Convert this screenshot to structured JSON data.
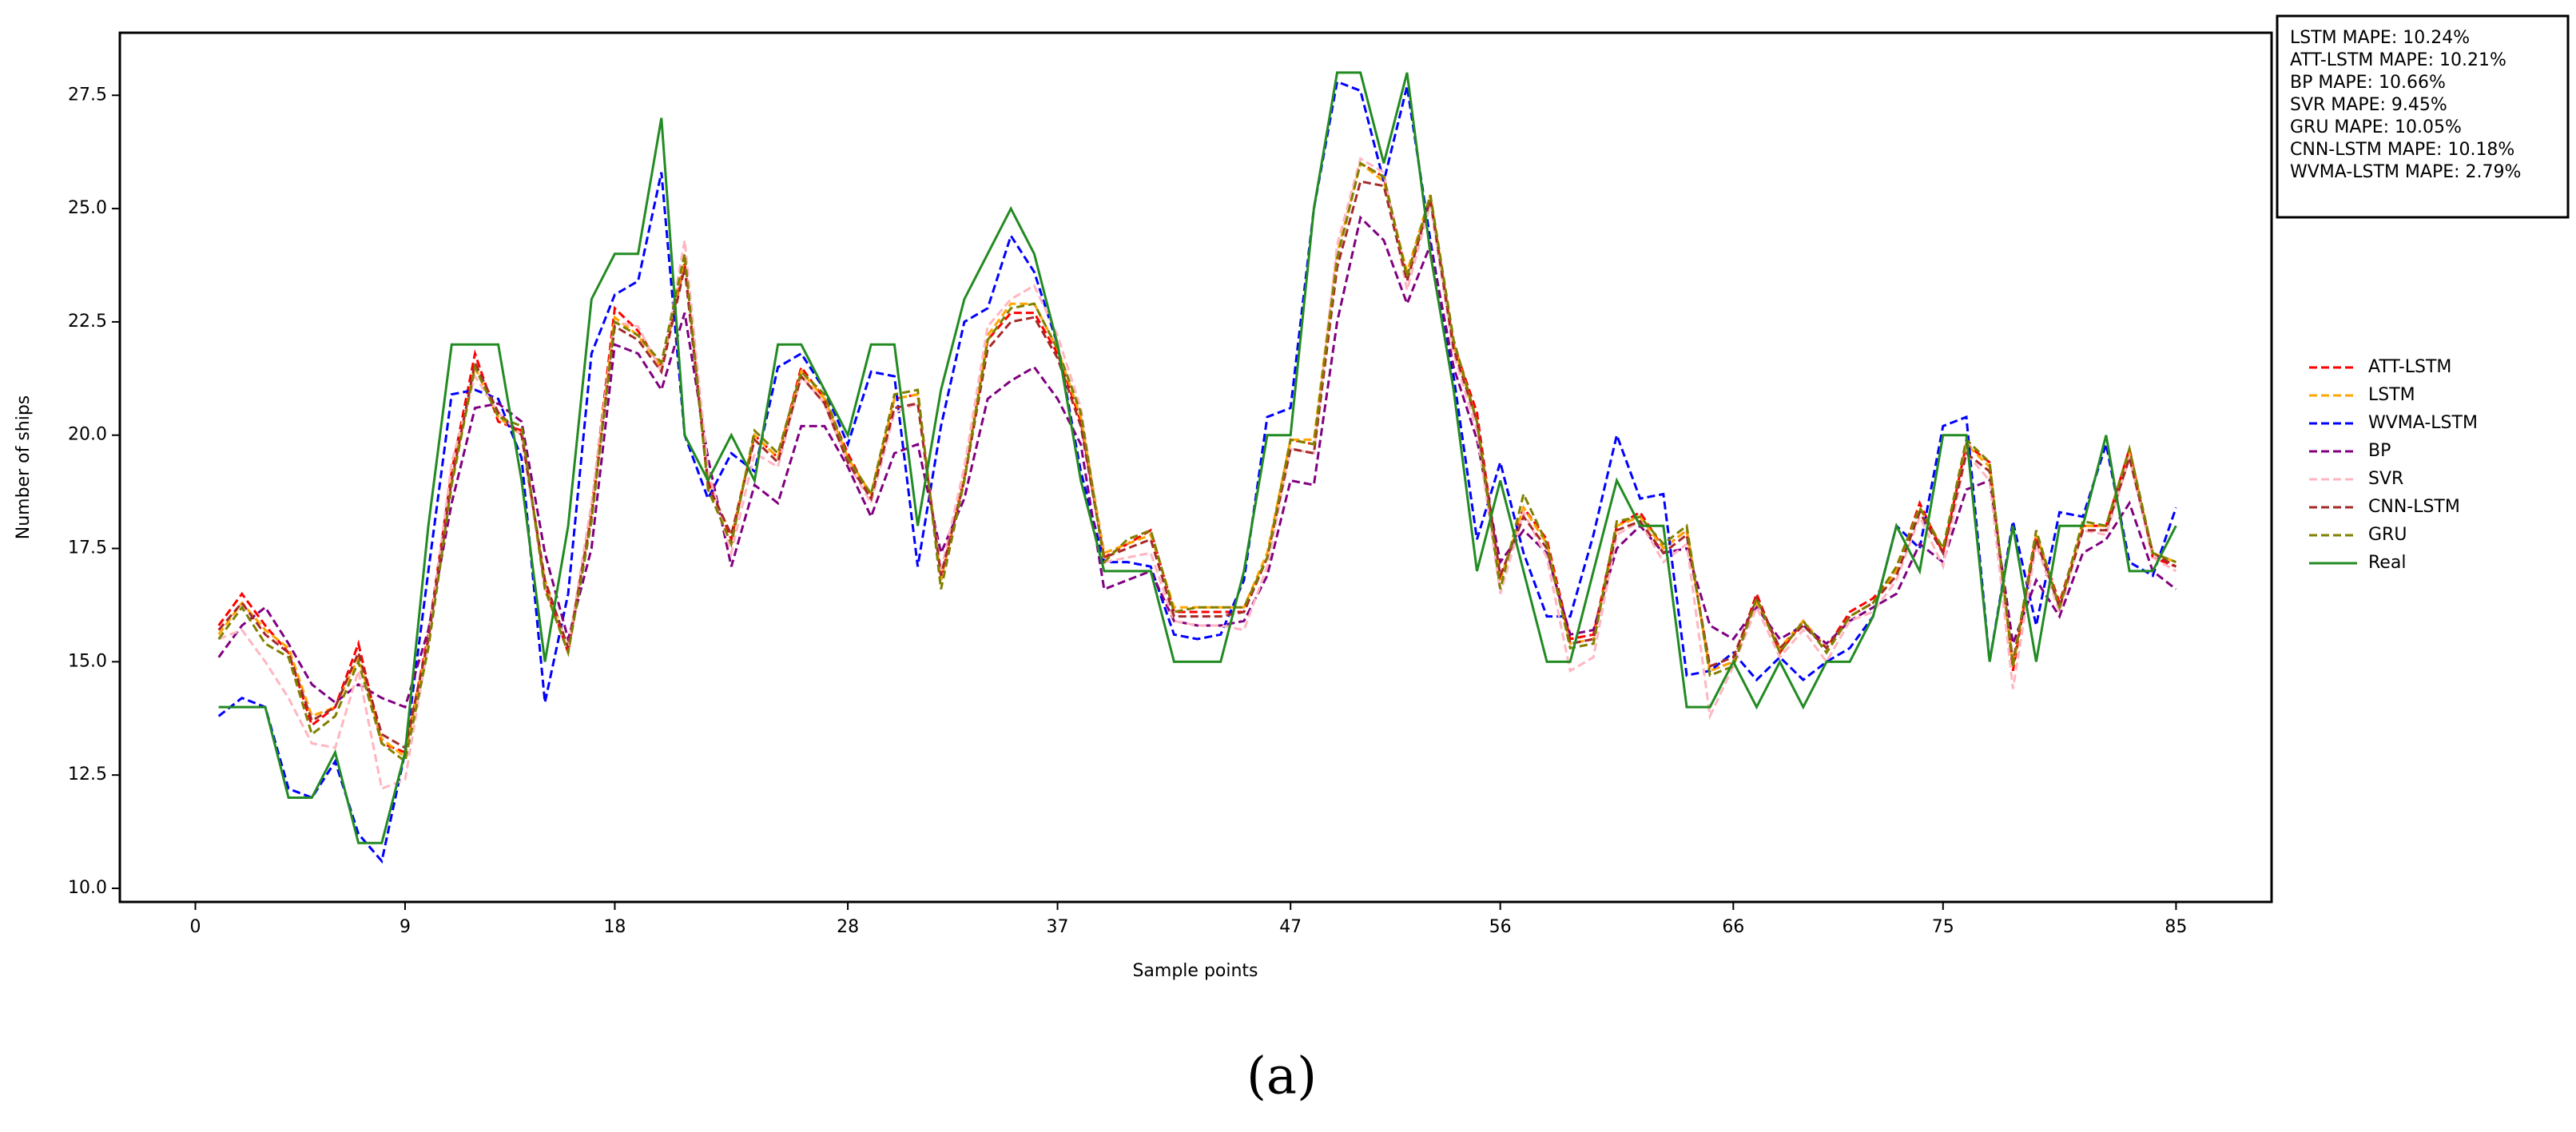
{
  "chart_data": {
    "type": "line",
    "xlabel": "Sample points",
    "ylabel": "Number of ships",
    "caption": "(a)",
    "annotations": [
      "LSTM MAPE: 10.24%",
      "ATT-LSTM MAPE: 10.21%",
      "BP MAPE: 10.66%",
      "SVR MAPE: 9.45%",
      "GRU MAPE: 10.05%",
      "CNN-LSTM MAPE: 10.18%",
      "WVMA-LSTM MAPE: 2.79%"
    ],
    "legend": "right",
    "xlim": [
      -3.24,
      89.1
    ],
    "ylim": [
      9.7,
      28.88
    ],
    "xticks": [
      0,
      9,
      18,
      28,
      37,
      47,
      56,
      66,
      75,
      85
    ],
    "yticks": [
      {
        "value": 10,
        "label": "10.0"
      },
      12.5,
      {
        "value": 15,
        "label": "15.0"
      },
      17.5,
      {
        "value": 20,
        "label": "20.0"
      },
      22.5,
      {
        "value": 25,
        "label": "25.0"
      },
      27.5
    ],
    "x": [
      1,
      2,
      3,
      4,
      5,
      6,
      7,
      8,
      9,
      10,
      11,
      12,
      13,
      14,
      15,
      16,
      17,
      18,
      19,
      20,
      21,
      22,
      23,
      24,
      25,
      26,
      27,
      28,
      29,
      30,
      31,
      32,
      33,
      34,
      35,
      36,
      37,
      38,
      39,
      40,
      41,
      42,
      43,
      44,
      45,
      46,
      47,
      48,
      49,
      50,
      51,
      52,
      53,
      54,
      55,
      56,
      57,
      58,
      59,
      60,
      61,
      62,
      63,
      64,
      65,
      66,
      67,
      68,
      69,
      70,
      71,
      72,
      73,
      74,
      75,
      76,
      77,
      78,
      79,
      80,
      81,
      82,
      83,
      84,
      85
    ],
    "series": [
      {
        "name": "ATT-LSTM",
        "color": "#ff0000",
        "dashed": true,
        "values": [
          15.8,
          16.5,
          15.8,
          15.2,
          13.6,
          14.0,
          15.4,
          13.2,
          13.0,
          15.6,
          19.2,
          21.8,
          20.3,
          20.1,
          16.7,
          15.2,
          18.4,
          22.8,
          22.3,
          21.5,
          23.8,
          19.0,
          17.7,
          20.0,
          19.5,
          21.5,
          20.8,
          19.6,
          18.6,
          20.8,
          20.9,
          16.8,
          19.1,
          22.1,
          22.7,
          22.7,
          21.8,
          20.3,
          17.3,
          17.6,
          17.9,
          16.1,
          16.1,
          16.1,
          16.1,
          17.3,
          19.9,
          19.8,
          24.0,
          26.0,
          25.7,
          23.5,
          25.2,
          22.0,
          20.5,
          16.8,
          18.4,
          17.7,
          15.5,
          15.6,
          18.0,
          18.3,
          17.5,
          17.9,
          14.8,
          15.0,
          16.5,
          15.2,
          15.9,
          15.3,
          16.1,
          16.4,
          17.0,
          18.5,
          17.4,
          19.8,
          19.4,
          14.8,
          17.8,
          16.3,
          18.0,
          18.0,
          19.7,
          17.3,
          17.1
        ]
      },
      {
        "name": "LSTM",
        "color": "#ffa500",
        "dashed": true,
        "values": [
          15.6,
          16.3,
          15.7,
          15.3,
          13.8,
          14.0,
          15.1,
          13.3,
          12.9,
          15.5,
          19.0,
          21.5,
          20.4,
          20.0,
          16.8,
          15.3,
          18.3,
          22.6,
          22.2,
          21.5,
          23.9,
          18.9,
          17.8,
          20.0,
          19.5,
          21.4,
          20.8,
          19.5,
          18.7,
          20.8,
          20.9,
          16.8,
          19.2,
          22.2,
          22.9,
          22.9,
          21.9,
          20.4,
          17.4,
          17.6,
          17.8,
          16.2,
          16.2,
          16.2,
          16.2,
          17.4,
          19.9,
          19.9,
          24.0,
          26.0,
          25.6,
          23.6,
          25.3,
          22.0,
          20.3,
          16.8,
          18.4,
          17.6,
          15.4,
          15.5,
          18.0,
          18.2,
          17.5,
          17.9,
          14.8,
          15.0,
          16.3,
          15.3,
          15.9,
          15.3,
          16.0,
          16.3,
          17.0,
          18.4,
          17.5,
          19.8,
          19.3,
          14.9,
          17.8,
          16.2,
          18.0,
          18.0,
          19.6,
          17.4,
          17.2
        ]
      },
      {
        "name": "WVMA-LSTM",
        "color": "#0000ff",
        "dashed": true,
        "values": [
          13.8,
          14.2,
          14.0,
          12.2,
          12.0,
          12.8,
          11.2,
          10.6,
          13.0,
          17.0,
          20.9,
          21.0,
          20.8,
          19.5,
          14.1,
          16.5,
          21.8,
          23.1,
          23.4,
          25.8,
          20.0,
          18.6,
          19.6,
          19.2,
          21.5,
          21.8,
          21.0,
          19.8,
          21.4,
          21.3,
          17.1,
          20.2,
          22.5,
          22.8,
          24.4,
          23.6,
          22.0,
          19.2,
          17.2,
          17.2,
          17.1,
          15.6,
          15.5,
          15.6,
          16.8,
          20.4,
          20.6,
          25.0,
          27.8,
          27.6,
          25.6,
          27.7,
          24.3,
          21.3,
          17.7,
          19.4,
          17.4,
          16.0,
          16.0,
          17.8,
          20.0,
          18.6,
          18.7,
          14.7,
          14.8,
          15.2,
          14.6,
          15.1,
          14.6,
          15.0,
          15.3,
          16.0,
          18.0,
          17.5,
          20.2,
          20.4,
          15.0,
          18.1,
          15.8,
          18.3,
          18.2,
          19.8,
          17.2,
          16.9,
          18.4
        ]
      },
      {
        "name": "BP",
        "color": "#800080",
        "dashed": true,
        "values": [
          15.1,
          15.8,
          16.2,
          15.4,
          14.5,
          14.1,
          14.5,
          14.2,
          14.0,
          15.7,
          18.5,
          20.6,
          20.7,
          20.3,
          17.4,
          15.5,
          17.5,
          22.0,
          21.8,
          21.0,
          22.7,
          19.5,
          17.1,
          18.9,
          18.5,
          20.2,
          20.2,
          19.3,
          18.2,
          19.6,
          19.8,
          17.4,
          18.6,
          20.8,
          21.2,
          21.5,
          20.8,
          19.8,
          16.6,
          16.8,
          17.0,
          15.9,
          15.8,
          15.8,
          15.9,
          16.9,
          19.0,
          18.9,
          22.5,
          24.8,
          24.3,
          22.9,
          24.2,
          21.5,
          19.9,
          17.2,
          17.9,
          17.4,
          15.6,
          15.7,
          17.5,
          18.0,
          17.4,
          17.5,
          15.8,
          15.5,
          16.2,
          15.5,
          15.8,
          15.4,
          15.9,
          16.2,
          16.5,
          17.6,
          17.2,
          18.8,
          19.0,
          15.4,
          16.8,
          16.0,
          17.4,
          17.7,
          18.5,
          17.0,
          16.6
        ]
      },
      {
        "name": "SVR",
        "color": "#ffb6c1",
        "dashed": true,
        "values": [
          15.5,
          15.7,
          15.0,
          14.2,
          13.2,
          13.1,
          14.8,
          12.2,
          12.4,
          15.4,
          19.4,
          21.3,
          20.5,
          20.0,
          16.6,
          15.3,
          18.5,
          22.5,
          22.4,
          21.4,
          24.3,
          19.2,
          17.4,
          19.6,
          19.3,
          21.3,
          20.7,
          19.4,
          18.5,
          20.5,
          20.7,
          17.0,
          19.3,
          22.4,
          23.0,
          23.3,
          22.2,
          20.6,
          17.2,
          17.3,
          17.4,
          15.9,
          15.8,
          15.8,
          15.7,
          17.1,
          19.7,
          19.6,
          24.2,
          26.1,
          25.8,
          23.2,
          25.1,
          21.8,
          20.1,
          16.5,
          18.3,
          17.3,
          14.8,
          15.1,
          17.8,
          18.1,
          17.2,
          17.6,
          13.8,
          14.9,
          16.2,
          15.1,
          15.7,
          15.0,
          15.9,
          16.1,
          16.8,
          18.2,
          17.1,
          19.6,
          19.0,
          14.4,
          17.6,
          16.1,
          17.9,
          17.8,
          19.5,
          17.3,
          17.0
        ]
      },
      {
        "name": "CNN-LSTM",
        "color": "#a52a2a",
        "dashed": true,
        "values": [
          15.7,
          16.3,
          15.6,
          15.2,
          13.7,
          14.0,
          15.2,
          13.4,
          13.1,
          15.5,
          19.0,
          21.6,
          20.5,
          20.0,
          16.8,
          15.3,
          18.2,
          22.4,
          22.1,
          21.4,
          23.7,
          18.9,
          17.8,
          19.9,
          19.4,
          21.3,
          20.7,
          19.4,
          18.6,
          20.6,
          20.7,
          16.9,
          19.0,
          21.9,
          22.5,
          22.6,
          21.7,
          20.2,
          17.3,
          17.5,
          17.7,
          16.0,
          16.0,
          16.0,
          16.1,
          17.3,
          19.7,
          19.6,
          23.7,
          25.6,
          25.5,
          23.4,
          25.2,
          21.9,
          20.3,
          16.9,
          18.2,
          17.5,
          15.4,
          15.5,
          17.9,
          18.1,
          17.4,
          17.8,
          14.9,
          15.1,
          16.4,
          15.3,
          15.8,
          15.3,
          16.0,
          16.3,
          16.9,
          18.3,
          17.4,
          19.6,
          19.2,
          15.0,
          17.7,
          16.2,
          17.9,
          17.9,
          19.5,
          17.4,
          17.1
        ]
      },
      {
        "name": "GRU",
        "color": "#808000",
        "dashed": true,
        "values": [
          15.5,
          16.2,
          15.4,
          15.1,
          13.4,
          13.8,
          15.0,
          13.2,
          12.8,
          15.3,
          18.9,
          21.5,
          20.4,
          20.2,
          16.6,
          15.2,
          18.1,
          22.5,
          22.2,
          21.6,
          24.0,
          18.8,
          17.6,
          20.1,
          19.6,
          21.4,
          20.9,
          19.5,
          18.7,
          20.9,
          21.0,
          16.6,
          19.0,
          22.1,
          22.8,
          22.9,
          21.9,
          20.5,
          17.2,
          17.7,
          17.9,
          16.1,
          16.2,
          16.2,
          16.2,
          17.3,
          19.9,
          19.8,
          23.9,
          26.0,
          25.7,
          23.5,
          25.3,
          22.1,
          20.3,
          16.6,
          18.7,
          17.6,
          15.3,
          15.4,
          18.1,
          18.2,
          17.6,
          18.0,
          14.7,
          14.9,
          16.4,
          15.2,
          15.9,
          15.2,
          16.0,
          16.3,
          17.1,
          18.4,
          17.5,
          19.9,
          19.4,
          14.9,
          17.9,
          16.2,
          18.1,
          18.0,
          19.7,
          17.4,
          17.2
        ]
      },
      {
        "name": "Real",
        "color": "#228b22",
        "dashed": false,
        "values": [
          14,
          14,
          14,
          12,
          12,
          13,
          11,
          11,
          13,
          18,
          22,
          22,
          22,
          19,
          15,
          18,
          23,
          24,
          24,
          27,
          20,
          19,
          20,
          19,
          22,
          22,
          21,
          20,
          22,
          22,
          18,
          21,
          23,
          24,
          25,
          24,
          22,
          19,
          17,
          17,
          17,
          15,
          15,
          15,
          17,
          20,
          20,
          25,
          28,
          28,
          26,
          28,
          24,
          21,
          17,
          19,
          17,
          15,
          15,
          17,
          19,
          18,
          18,
          14,
          14,
          15,
          14,
          15,
          14,
          15,
          15,
          16,
          18,
          17,
          20,
          20,
          15,
          18,
          15,
          18,
          18,
          20,
          17,
          17,
          18
        ]
      }
    ]
  }
}
